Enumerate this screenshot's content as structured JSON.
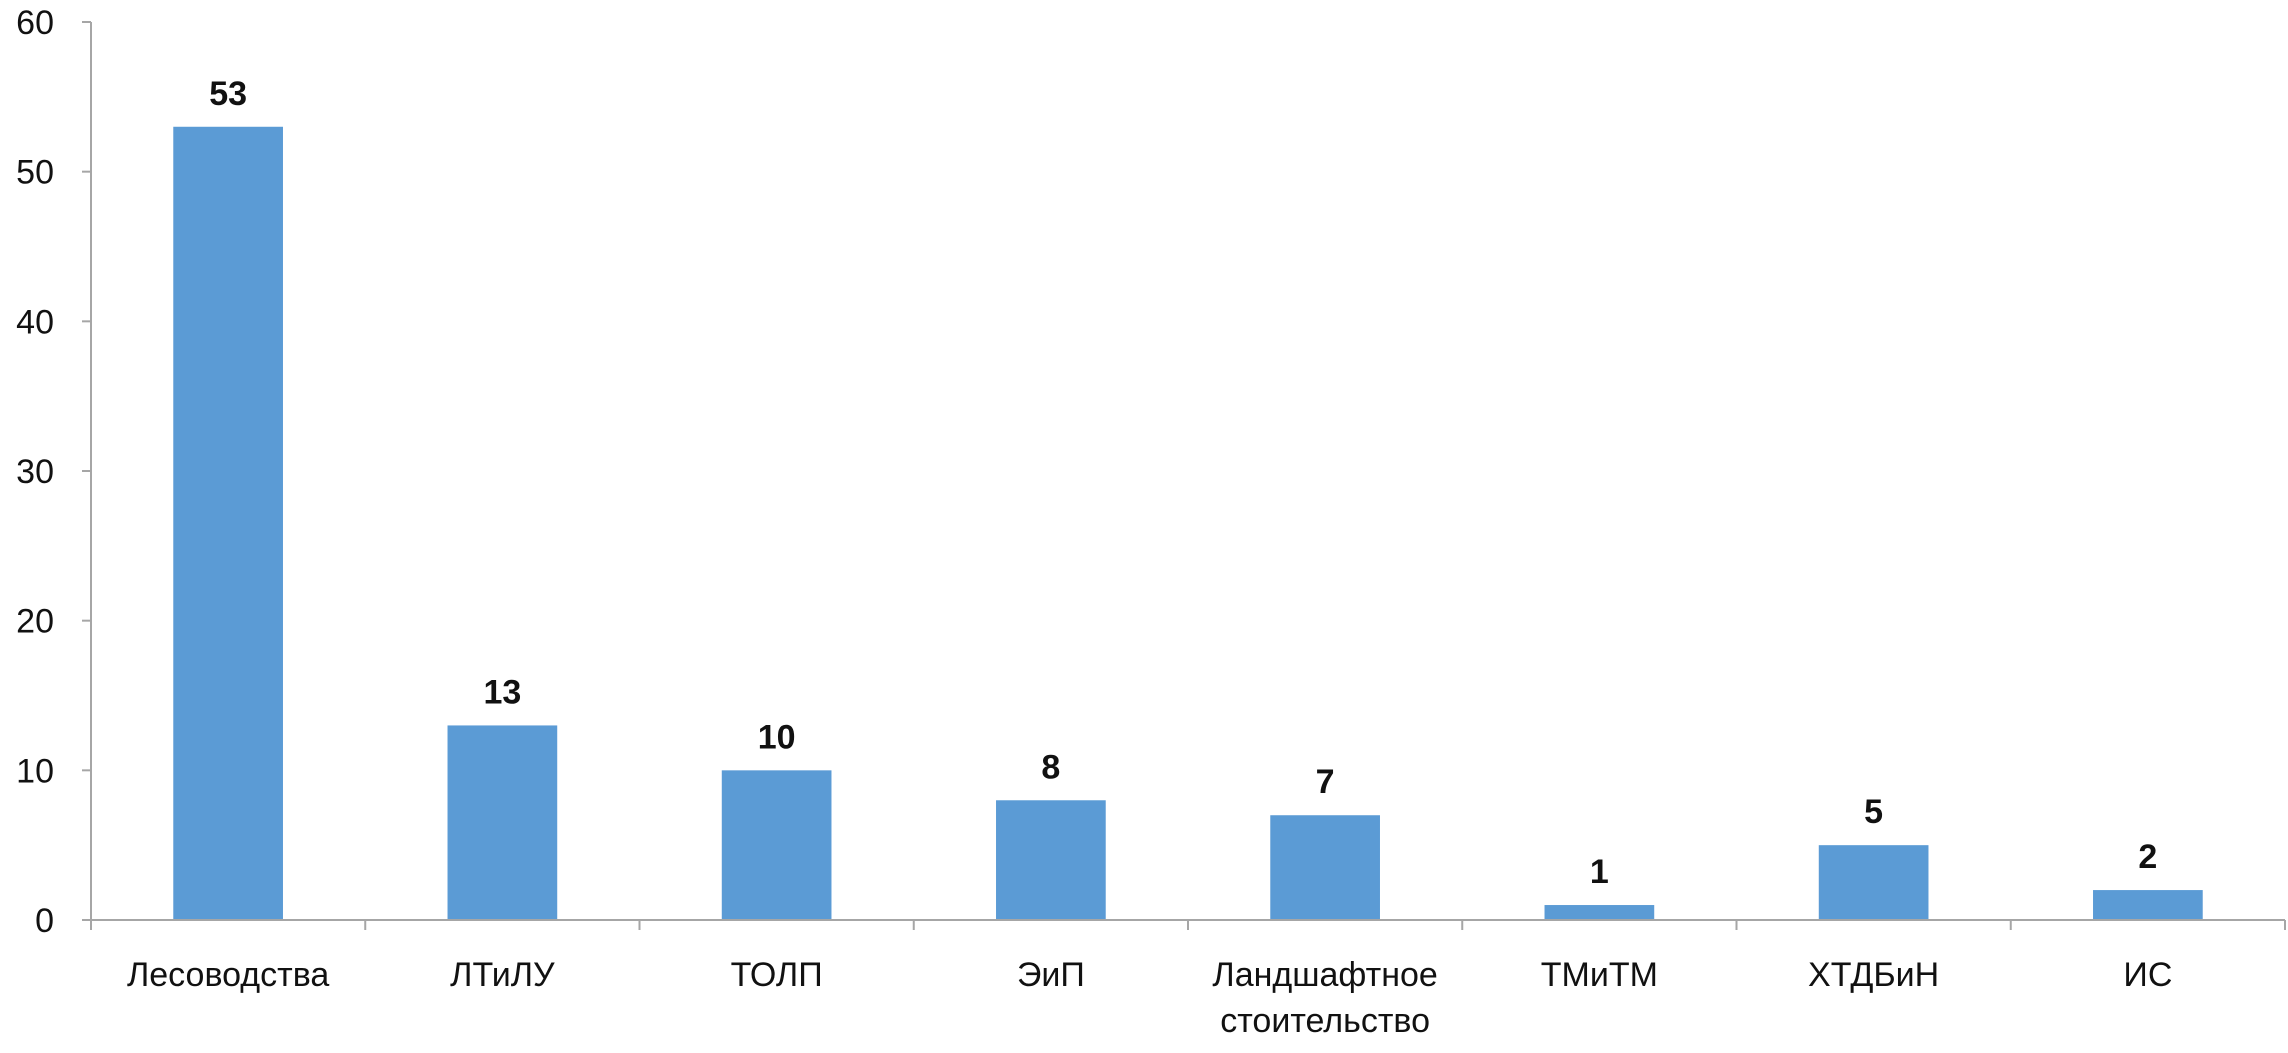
{
  "chart_data": {
    "type": "bar",
    "title": "",
    "xlabel": "",
    "ylabel": "",
    "categories": [
      [
        "Лесоводства"
      ],
      [
        "ЛТиЛУ"
      ],
      [
        "ТОЛП"
      ],
      [
        "ЭиП"
      ],
      [
        "Ландшафтное",
        "стоительство"
      ],
      [
        "ТМиТМ"
      ],
      [
        "ХТДБиН"
      ],
      [
        "ИС"
      ]
    ],
    "values": [
      53,
      13,
      10,
      8,
      7,
      1,
      5,
      2
    ],
    "ylim": [
      0,
      60
    ],
    "yticks": [
      0,
      10,
      20,
      30,
      40,
      50,
      60
    ],
    "bar_color": "#5b9bd5",
    "axis_color": "#a6a6a6",
    "grid": false,
    "legend": "none",
    "data_labels": true
  }
}
